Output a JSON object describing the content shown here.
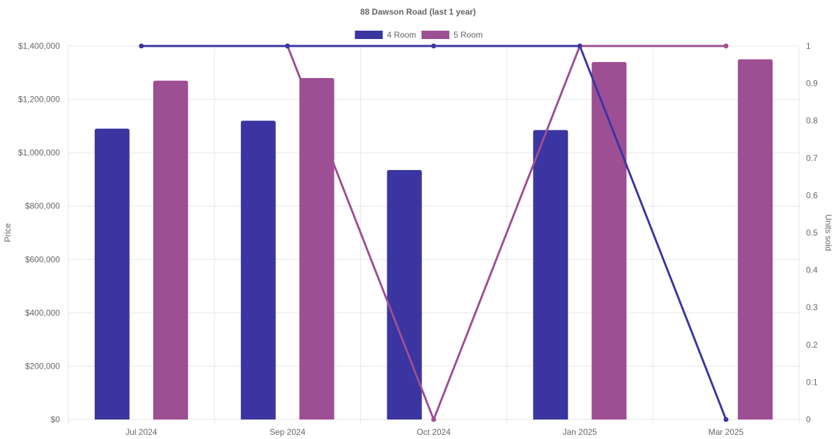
{
  "chart_data": {
    "type": "bar",
    "title": "88 Dawson Road (last 1 year)",
    "categories": [
      "Jul 2024",
      "Sep 2024",
      "Oct 2024",
      "Jan 2025",
      "Mar 2025"
    ],
    "y_left": {
      "label": "Price",
      "min": 0,
      "max": 1400000,
      "step": 200000,
      "tick_labels": [
        "$0",
        "$200,000",
        "$400,000",
        "$600,000",
        "$800,000",
        "$1,000,000",
        "$1,200,000",
        "$1,400,000"
      ]
    },
    "y_right": {
      "label": "Units sold",
      "min": 0,
      "max": 1,
      "step": 0.1,
      "tick_labels": [
        "0",
        "0.1",
        "0.2",
        "0.3",
        "0.4",
        "0.5",
        "0.6",
        "0.7",
        "0.8",
        "0.9",
        "1"
      ]
    },
    "grid": true,
    "legend_position": "top",
    "series": [
      {
        "name": "4 Room",
        "color": "#3a35a0",
        "bar_values": [
          1090000,
          1120000,
          935000,
          1085000,
          null
        ],
        "line_values": [
          1,
          1,
          1,
          1,
          0
        ]
      },
      {
        "name": "5 Room",
        "color": "#9e4e93",
        "bar_values": [
          1270000,
          1280000,
          null,
          1340000,
          1350000
        ],
        "line_values": [
          null,
          1,
          0,
          1,
          1
        ]
      }
    ]
  }
}
